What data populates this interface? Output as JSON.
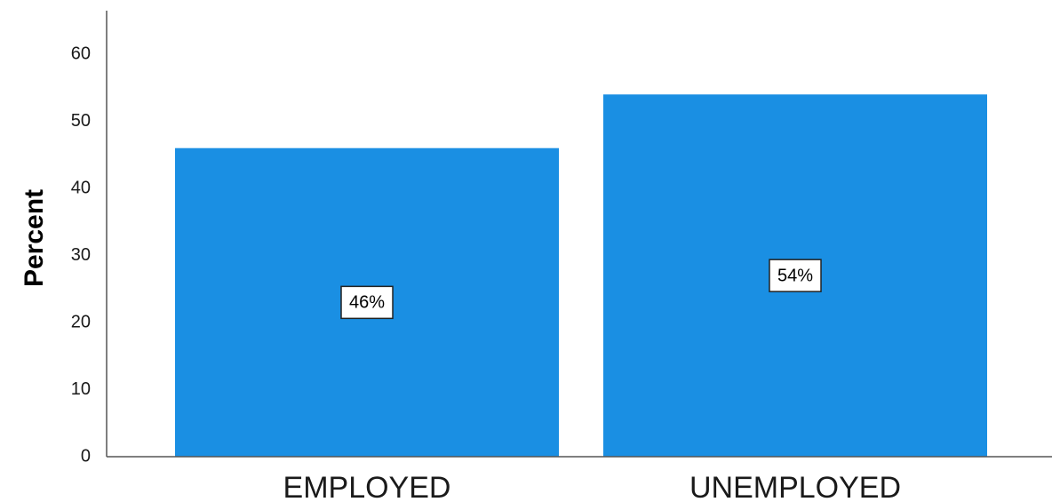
{
  "chart_data": {
    "type": "bar",
    "categories": [
      "EMPLOYED",
      "UNEMPLOYED"
    ],
    "values": [
      46,
      54
    ],
    "data_labels": [
      "46%",
      "54%"
    ],
    "title": "",
    "xlabel": "",
    "ylabel": "Percent",
    "ylim": [
      0,
      66
    ],
    "yticks": [
      0,
      10,
      20,
      30,
      40,
      50,
      60
    ],
    "grid": false,
    "legend": "none",
    "bar_color": "#1a8fe3"
  }
}
